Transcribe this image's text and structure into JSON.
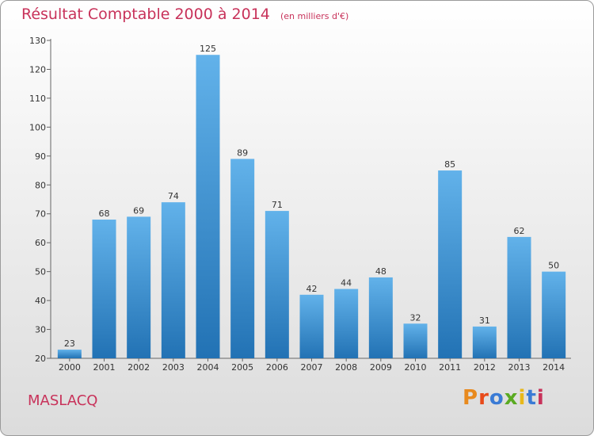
{
  "header": {
    "title": "Résultat Comptable 2000 à 2014",
    "subtitle": "(en milliers d'€)"
  },
  "footer": {
    "commune": "MASLACQ",
    "logo_text": "Proxiti"
  },
  "colors": {
    "title": "#c8325a",
    "bar_light": "#62b2ea",
    "bar_dark": "#2272b4",
    "logo_letters": [
      "#e88a1e",
      "#e84a1a",
      "#3a7bd5",
      "#5aaa22",
      "#e8b81a",
      "#3a7bd5",
      "#c8325a"
    ]
  },
  "chart_data": {
    "type": "bar",
    "title": "Résultat Comptable 2000 à 2014",
    "xlabel": "",
    "ylabel": "",
    "ylim": [
      20,
      130
    ],
    "yticks": [
      20,
      30,
      40,
      50,
      60,
      70,
      80,
      90,
      100,
      110,
      120,
      130
    ],
    "grid": false,
    "categories": [
      "2000",
      "2001",
      "2002",
      "2003",
      "2004",
      "2005",
      "2006",
      "2007",
      "2008",
      "2009",
      "2010",
      "2011",
      "2012",
      "2013",
      "2014"
    ],
    "values": [
      23,
      68,
      69,
      74,
      125,
      89,
      71,
      42,
      44,
      48,
      32,
      85,
      31,
      62,
      50
    ]
  }
}
